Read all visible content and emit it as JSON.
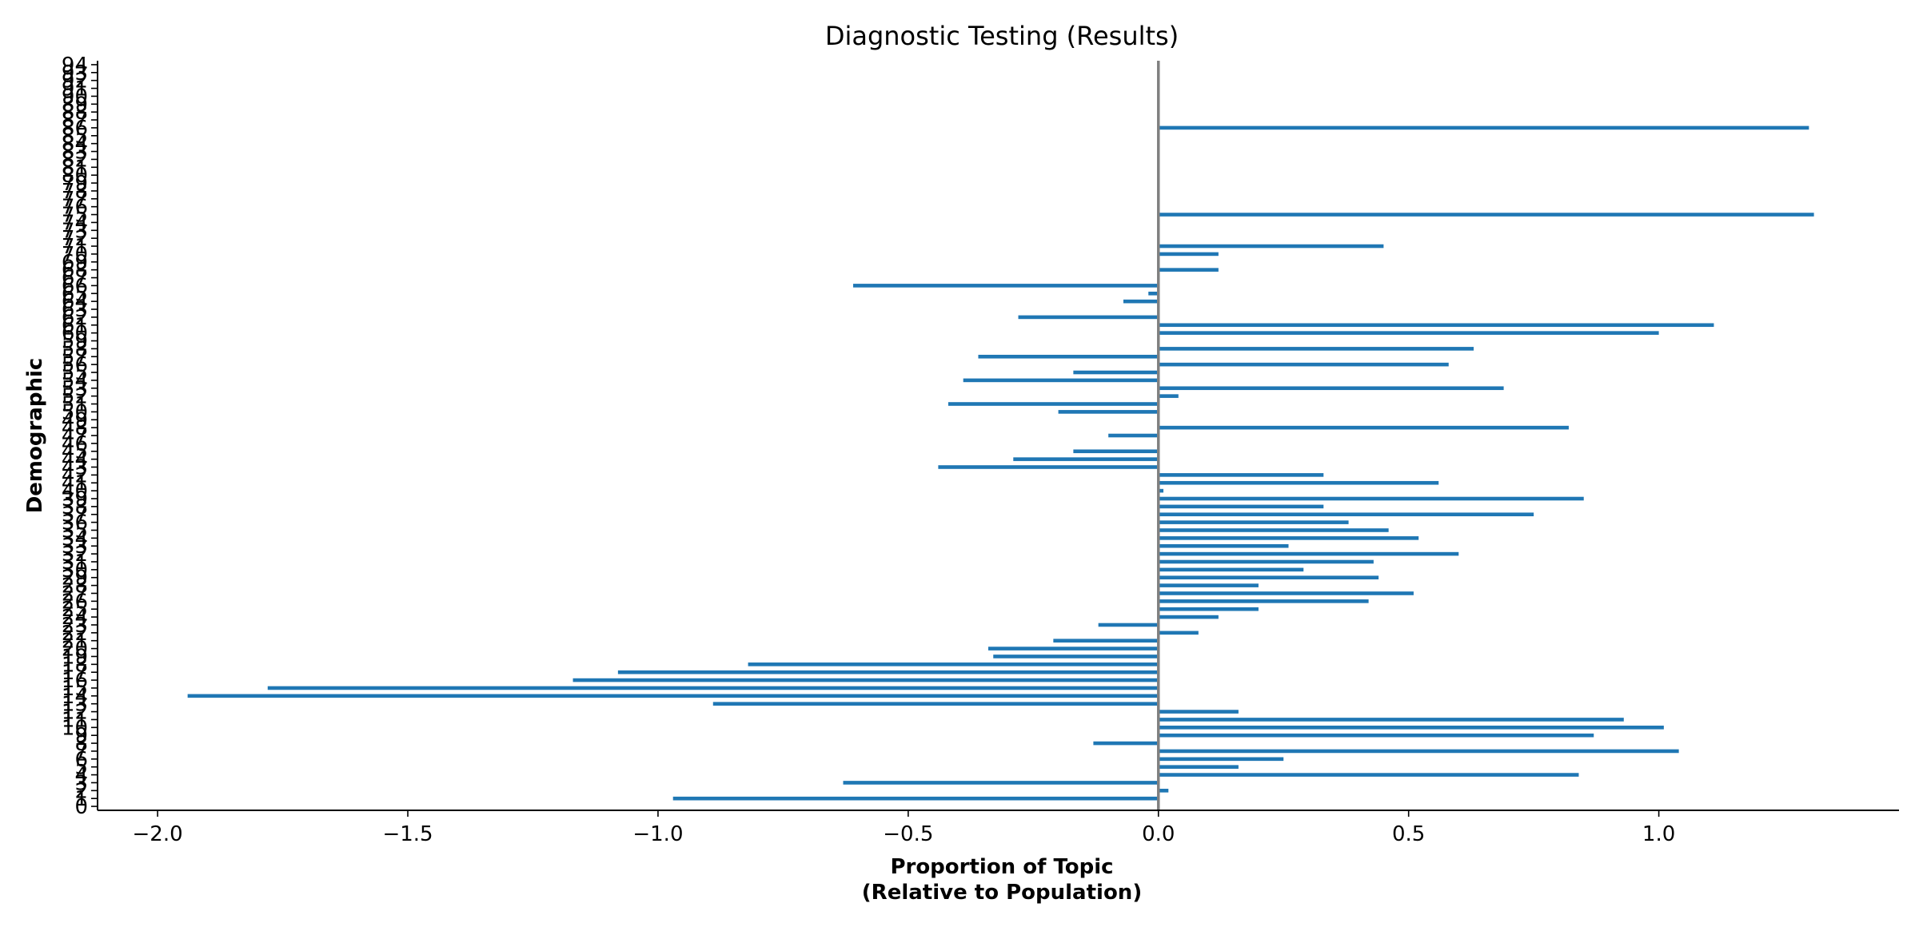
{
  "chart_data": {
    "type": "bar",
    "orientation": "horizontal",
    "title": "Diagnostic Testing (Results)",
    "xlabel_lines": [
      "Proportion of Topic",
      "(Relative to Population)"
    ],
    "ylabel": "Demographic",
    "xlim": [
      -2.12,
      1.48
    ],
    "ylim": [
      -0.5,
      94.5
    ],
    "xticks": [
      -2.0,
      -1.5,
      -1.0,
      -0.5,
      0.0,
      0.5,
      1.0
    ],
    "xtick_labels": [
      "−2.0",
      "−1.5",
      "−1.0",
      "−0.5",
      "0.0",
      "0.5",
      "1.0"
    ],
    "grid": false,
    "legend": false,
    "bar_color": "#1f77b4",
    "zero_line_color": "#808080",
    "categories": [
      0,
      1,
      2,
      3,
      4,
      5,
      6,
      7,
      8,
      9,
      10,
      11,
      12,
      13,
      14,
      15,
      16,
      17,
      18,
      19,
      20,
      21,
      22,
      23,
      24,
      25,
      26,
      27,
      28,
      29,
      30,
      31,
      32,
      33,
      34,
      35,
      36,
      37,
      38,
      39,
      40,
      41,
      42,
      43,
      44,
      45,
      46,
      47,
      48,
      49,
      50,
      51,
      52,
      53,
      54,
      55,
      56,
      57,
      58,
      59,
      60,
      61,
      62,
      63,
      64,
      65,
      66,
      67,
      68,
      69,
      70,
      71,
      72,
      73,
      74,
      75,
      76,
      77,
      78,
      79,
      80,
      81,
      82,
      83,
      84,
      85,
      86,
      87,
      88,
      89,
      90,
      91,
      92,
      93,
      94
    ],
    "values": [
      0,
      -0.97,
      0.02,
      -0.63,
      0.84,
      0.16,
      0.25,
      1.04,
      -0.13,
      0.87,
      1.01,
      0.93,
      0.16,
      -0.89,
      -1.94,
      -1.78,
      -1.17,
      -1.08,
      -0.82,
      -0.33,
      -0.34,
      -0.21,
      0.08,
      -0.12,
      0.12,
      0.2,
      0.42,
      0.51,
      0.2,
      0.44,
      0.29,
      0.43,
      0.6,
      0.26,
      0.52,
      0.46,
      0.38,
      0.75,
      0.33,
      0.85,
      0.01,
      0.56,
      0.33,
      -0.44,
      -0.29,
      -0.17,
      0,
      -0.1,
      0.82,
      0,
      -0.2,
      -0.42,
      0.04,
      0.69,
      -0.39,
      -0.17,
      0.58,
      -0.36,
      0.63,
      0,
      1.0,
      1.11,
      -0.28,
      0,
      -0.07,
      -0.02,
      -0.61,
      0,
      0.12,
      0,
      0.12,
      0.45,
      0,
      0,
      0,
      1.31,
      0,
      0,
      0,
      0,
      0,
      0,
      0,
      0,
      0,
      0,
      1.3,
      0,
      0,
      0,
      0,
      0,
      0,
      0,
      0
    ]
  }
}
